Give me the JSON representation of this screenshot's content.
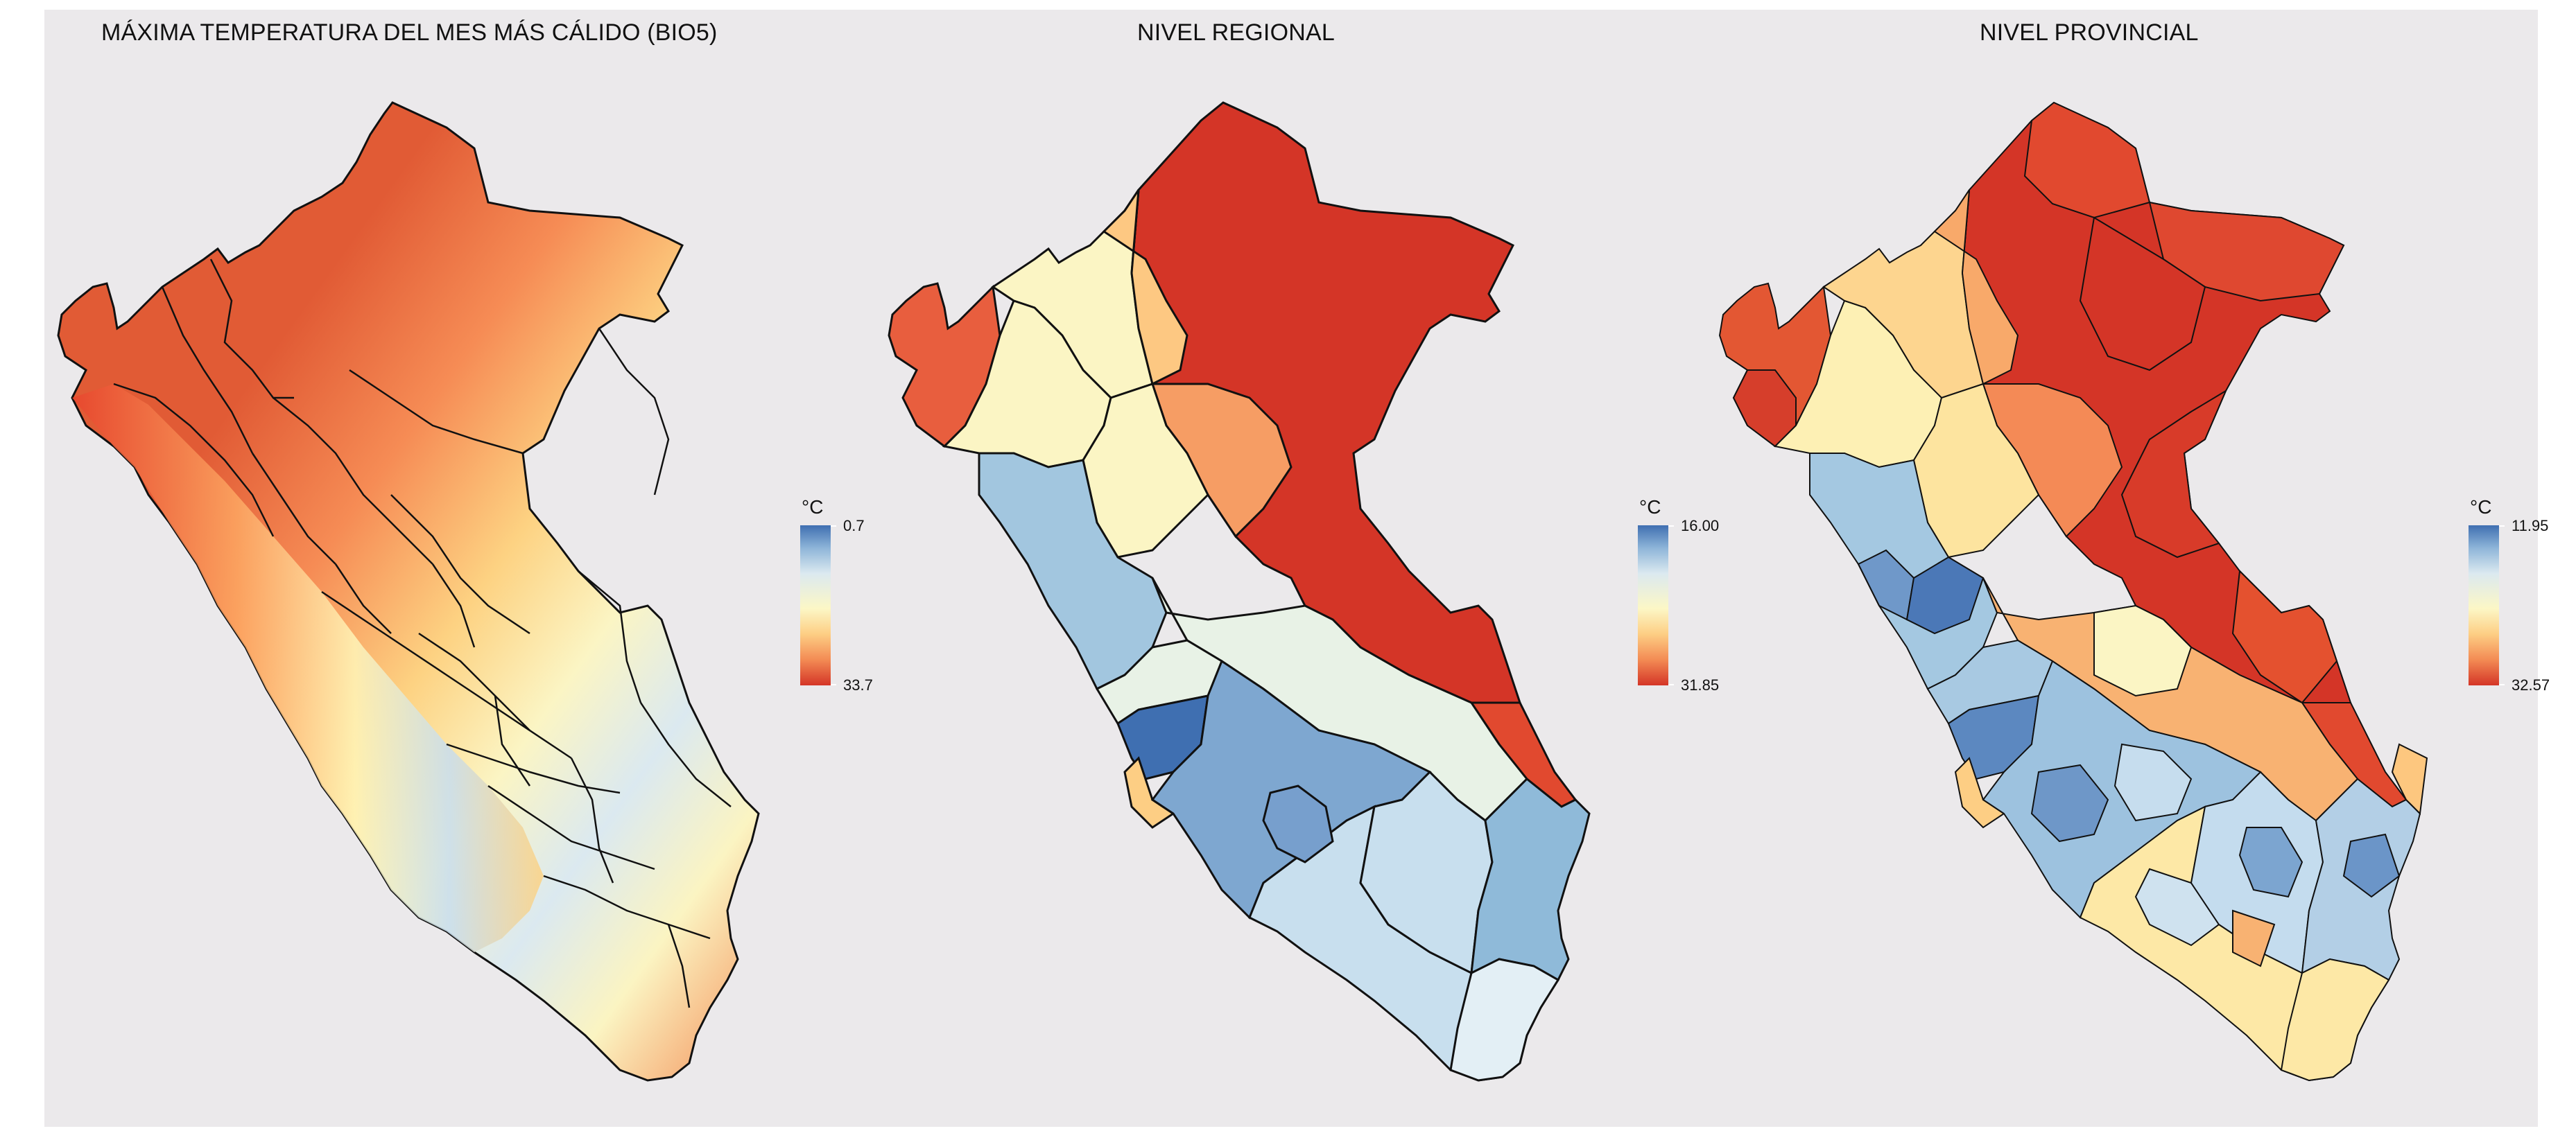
{
  "panels": [
    {
      "title": "MÁXIMA TEMPERATURA DEL MES MÁS CÁLIDO (BIO5)",
      "legend": {
        "unit": "°C",
        "top_label": "0.7",
        "bottom_label": "33.7"
      },
      "mode": "raster"
    },
    {
      "title": "NIVEL REGIONAL",
      "legend": {
        "unit": "°C",
        "top_label": "16.00",
        "bottom_label": "31.85"
      },
      "mode": "regional"
    },
    {
      "title": "NIVEL PROVINCIAL",
      "legend": {
        "unit": "°C",
        "top_label": "11.95",
        "bottom_label": "32.57"
      },
      "mode": "provincial"
    }
  ],
  "colors": {
    "background": "#ebe9eb",
    "border": "#111111",
    "hot": "#d43527",
    "warm": "#f38b54",
    "mild": "#fdce84",
    "neutral": "#fcf7c6",
    "cool": "#dbe9f0",
    "cold": "#8db4d8",
    "coldest": "#3f6fb1"
  }
}
